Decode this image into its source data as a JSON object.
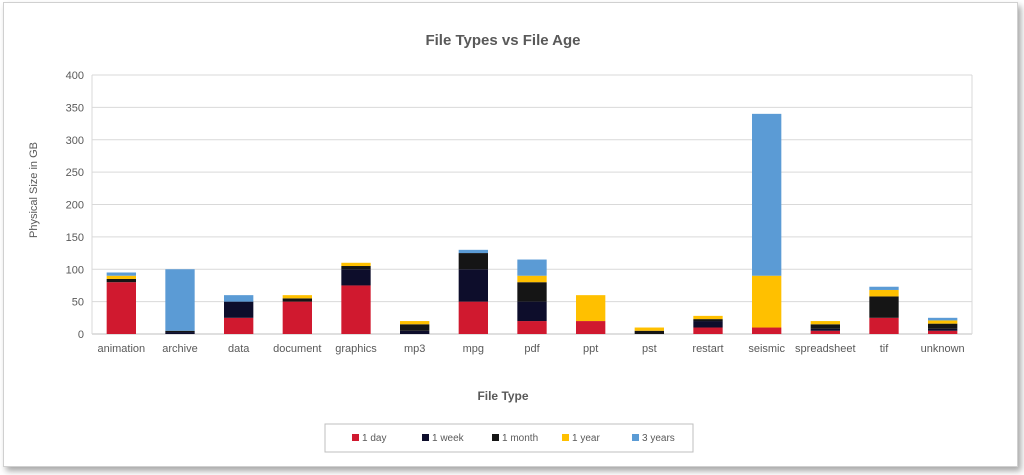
{
  "chart_data": {
    "type": "bar",
    "stacked": true,
    "title": "File Types vs File Age",
    "xlabel": "File Type",
    "ylabel": "Physical Size in GB",
    "ylim": [
      0,
      400
    ],
    "yticks": [
      0,
      50,
      100,
      150,
      200,
      250,
      300,
      350,
      400
    ],
    "grid": true,
    "legend_position": "bottom",
    "categories": [
      "animation",
      "archive",
      "data",
      "document",
      "graphics",
      "mp3",
      "mpg",
      "pdf",
      "ppt",
      "pst",
      "restart",
      "seismic",
      "spreadsheet",
      "tif",
      "unknown"
    ],
    "series": [
      {
        "name": "1 day",
        "color": "#d0192f",
        "values": [
          80,
          0,
          25,
          50,
          75,
          0,
          50,
          20,
          20,
          0,
          10,
          10,
          5,
          25,
          5
        ]
      },
      {
        "name": "1 week",
        "color": "#0d0d2b",
        "values": [
          0,
          3,
          25,
          0,
          25,
          5,
          50,
          30,
          0,
          0,
          10,
          0,
          3,
          0,
          3
        ]
      },
      {
        "name": "1 month",
        "color": "#151515",
        "values": [
          5,
          2,
          0,
          5,
          5,
          10,
          25,
          30,
          0,
          5,
          3,
          0,
          7,
          33,
          8
        ]
      },
      {
        "name": "1 year",
        "color": "#ffc000",
        "values": [
          5,
          0,
          0,
          5,
          5,
          5,
          0,
          10,
          40,
          5,
          5,
          80,
          5,
          10,
          5
        ]
      },
      {
        "name": "3 years",
        "color": "#5b9bd5",
        "values": [
          5,
          95,
          10,
          0,
          0,
          0,
          5,
          25,
          0,
          0,
          0,
          250,
          0,
          5,
          4
        ]
      }
    ]
  }
}
